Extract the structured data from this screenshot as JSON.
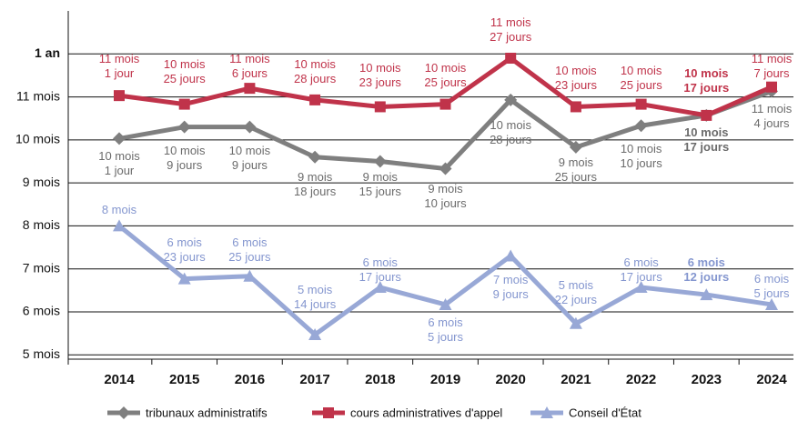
{
  "chart_data": {
    "type": "line",
    "categories": [
      "2014",
      "2015",
      "2016",
      "2017",
      "2018",
      "2019",
      "2020",
      "2021",
      "2022",
      "2023",
      "2024"
    ],
    "ylim": [
      4.9,
      13
    ],
    "yticks": [
      {
        "value": 5,
        "label": "5 mois"
      },
      {
        "value": 6,
        "label": "6 mois"
      },
      {
        "value": 7,
        "label": "7 mois"
      },
      {
        "value": 8,
        "label": "8 mois"
      },
      {
        "value": 9,
        "label": "9 mois"
      },
      {
        "value": 10,
        "label": "10 mois"
      },
      {
        "value": 11,
        "label": "11 mois"
      },
      {
        "value": 12,
        "label": "1 an"
      }
    ],
    "grid": true,
    "legend": "bottom",
    "series": [
      {
        "name": "tribunaux administratifs",
        "color": "#7f7f7f",
        "marker": "diamond",
        "values": [
          10.03,
          10.3,
          10.3,
          9.6,
          9.5,
          9.33,
          10.93,
          9.83,
          10.33,
          10.57,
          11.13
        ],
        "value_labels": [
          "10 mois\n1 jour",
          "10 mois\n9 jours",
          "10 mois\n9 jours",
          "9 mois\n18 jours",
          "9 mois\n15 jours",
          "9 mois\n10 jours",
          "10 mois\n28 jours",
          "9 mois\n25 jours",
          "10 mois\n10 jours",
          "10 mois\n17 jours",
          "11 mois\n4 jours"
        ]
      },
      {
        "name": "cours administratives d'appel",
        "color": "#c0334a",
        "marker": "square",
        "values": [
          11.03,
          10.83,
          11.2,
          10.93,
          10.77,
          10.83,
          11.9,
          10.77,
          10.83,
          10.57,
          11.23
        ],
        "value_labels": [
          "11 mois\n1 jour",
          "10 mois\n25 jours",
          "11 mois\n6 jours",
          "10 mois\n28 jours",
          "10 mois\n23 jours",
          "10 mois\n25 jours",
          "11 mois\n27 jours",
          "10 mois\n23 jours",
          "10 mois\n25 jours",
          "10 mois\n17 jours",
          "11 mois\n7 jours"
        ]
      },
      {
        "name": "Conseil d'État",
        "color": "#98a8d6",
        "marker": "triangle",
        "values": [
          8,
          6.77,
          6.83,
          5.47,
          6.57,
          6.17,
          7.3,
          5.73,
          6.57,
          6.4,
          6.17
        ],
        "value_labels": [
          "8 mois",
          "6 mois\n23 jours",
          "6 mois\n25 jours",
          "5 mois\n14 jours",
          "6 mois\n17 jours",
          "6 mois\n5 jours",
          "7 mois\n9 jours",
          "5 mois\n22 jours",
          "6 mois\n17 jours",
          "6 mois\n12 jours",
          "6 mois\n5 jours"
        ]
      }
    ]
  }
}
